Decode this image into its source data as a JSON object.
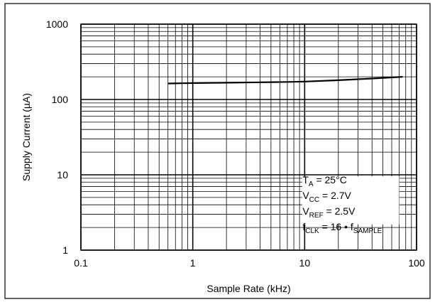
{
  "chart_data": {
    "type": "line",
    "title": "",
    "xlabel": "Sample Rate (kHz)",
    "ylabel": "Supply Current (µA)",
    "x_scale": "log",
    "y_scale": "log",
    "xlim": [
      0.1,
      100
    ],
    "ylim": [
      1,
      1000
    ],
    "grid": true,
    "x_ticks": [
      {
        "value": 0.1,
        "label": "0.1"
      },
      {
        "value": 1,
        "label": "1"
      },
      {
        "value": 10,
        "label": "10"
      },
      {
        "value": 100,
        "label": "100"
      }
    ],
    "y_ticks": [
      {
        "value": 1,
        "label": "1"
      },
      {
        "value": 10,
        "label": "10"
      },
      {
        "value": 100,
        "label": "100"
      },
      {
        "value": 1000,
        "label": "1000"
      }
    ],
    "series": [
      {
        "x": [
          0.6,
          1,
          2,
          4,
          7,
          10,
          20,
          40,
          75
        ],
        "y": [
          163,
          165,
          167,
          169,
          171,
          173,
          180,
          190,
          200
        ]
      }
    ],
    "annotations": [
      {
        "base": "T",
        "sub": "A",
        "rest": " = 25°C"
      },
      {
        "base": "V",
        "sub": "CC",
        "rest": " = 2.7V"
      },
      {
        "base": "V",
        "sub": "REF",
        "rest": " = 2.5V"
      },
      {
        "base": "f",
        "sub": "CLK",
        "rest": " = 16 • f",
        "sub2": "SAMPLE"
      }
    ]
  }
}
